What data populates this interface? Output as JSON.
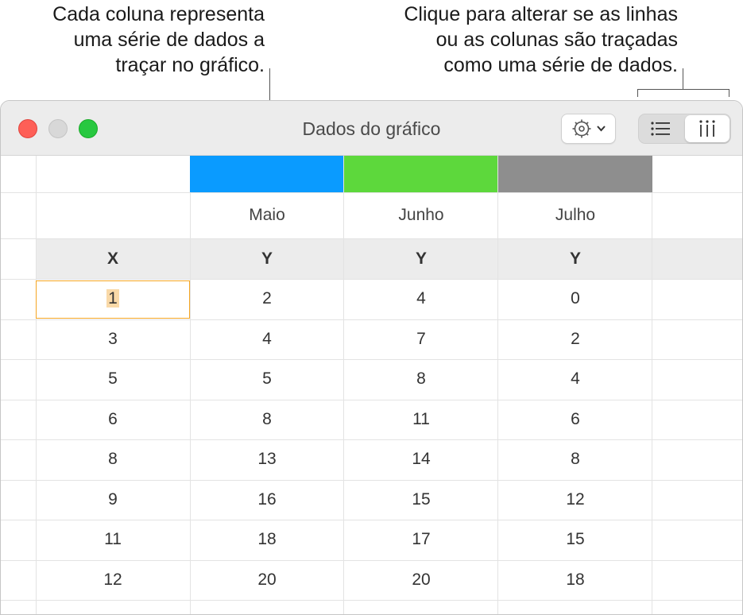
{
  "callouts": {
    "left": [
      "Cada coluna representa",
      "uma série de dados a",
      "traçar no gráfico."
    ],
    "right": [
      "Clique para alterar se as linhas",
      "ou as colunas são traçadas",
      "como uma série de dados."
    ]
  },
  "window": {
    "title": "Dados do gráfico"
  },
  "toolbar": {
    "gear_icon": "gear-icon",
    "rows_icon": "list-icon",
    "cols_icon": "columns-icon"
  },
  "series": [
    {
      "name": "Maio",
      "color": "#0a9bff"
    },
    {
      "name": "Junho",
      "color": "#5dd83c"
    },
    {
      "name": "Julho",
      "color": "#8e8e8e"
    }
  ],
  "headers": [
    "X",
    "Y",
    "Y",
    "Y"
  ],
  "rows": [
    [
      "1",
      "2",
      "4",
      "0"
    ],
    [
      "3",
      "4",
      "7",
      "2"
    ],
    [
      "5",
      "5",
      "8",
      "4"
    ],
    [
      "6",
      "8",
      "11",
      "6"
    ],
    [
      "8",
      "13",
      "14",
      "8"
    ],
    [
      "9",
      "16",
      "15",
      "12"
    ],
    [
      "11",
      "18",
      "17",
      "15"
    ],
    [
      "12",
      "20",
      "20",
      "18"
    ]
  ]
}
